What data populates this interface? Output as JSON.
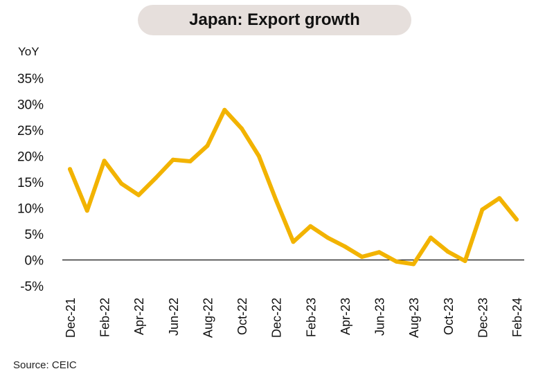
{
  "chart_data": {
    "type": "line",
    "title": "Japan: Export growth",
    "ylabel": "YoY",
    "source": "Source: CEIC",
    "ylim": [
      -5,
      35
    ],
    "yticks": [
      "35%",
      "30%",
      "25%",
      "20%",
      "15%",
      "10%",
      "5%",
      "0%",
      "-5%"
    ],
    "ytick_values": [
      35,
      30,
      25,
      20,
      15,
      10,
      5,
      0,
      -5
    ],
    "x": [
      "Dec-21",
      "Jan-22",
      "Feb-22",
      "Mar-22",
      "Apr-22",
      "May-22",
      "Jun-22",
      "Jul-22",
      "Aug-22",
      "Sep-22",
      "Oct-22",
      "Nov-22",
      "Dec-22",
      "Jan-23",
      "Feb-23",
      "Mar-23",
      "Apr-23",
      "May-23",
      "Jun-23",
      "Jul-23",
      "Aug-23",
      "Sep-23",
      "Oct-23",
      "Nov-23",
      "Dec-23",
      "Jan-24",
      "Feb-24"
    ],
    "xtick_labels": [
      "Dec-21",
      "Feb-22",
      "Apr-22",
      "Jun-22",
      "Aug-22",
      "Oct-22",
      "Dec-22",
      "Feb-23",
      "Apr-23",
      "Jun-23",
      "Aug-23",
      "Oct-23",
      "Dec-23",
      "Feb-24"
    ],
    "series": [
      {
        "values": [
          17.5,
          9.5,
          19.1,
          14.7,
          12.5,
          15.8,
          19.3,
          19.0,
          22.0,
          28.9,
          25.3,
          20.0,
          11.5,
          3.5,
          6.5,
          4.3,
          2.6,
          0.6,
          1.5,
          -0.3,
          -0.8,
          4.3,
          1.6,
          -0.2,
          9.7,
          11.9,
          7.8
        ],
        "color": "#f2b300"
      }
    ],
    "zero_line": true,
    "grid": false,
    "legend": "none"
  }
}
